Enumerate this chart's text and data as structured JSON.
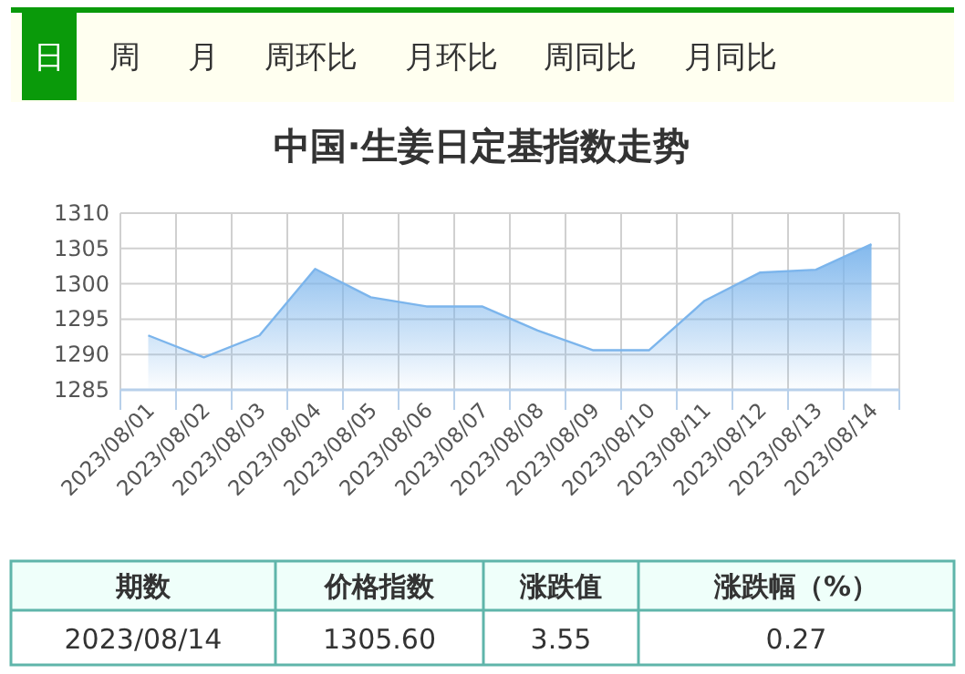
{
  "chart_data": {
    "type": "area",
    "title": "中国·生姜日定基指数走势",
    "categories": [
      "2023/08/01",
      "2023/08/02",
      "2023/08/03",
      "2023/08/04",
      "2023/08/05",
      "2023/08/06",
      "2023/08/07",
      "2023/08/08",
      "2023/08/09",
      "2023/08/10",
      "2023/08/11",
      "2023/08/12",
      "2023/08/13",
      "2023/08/14"
    ],
    "series": [
      {
        "color": "#7cb5ec",
        "values": [
          1292.7,
          1289.6,
          1292.7,
          1302.1,
          1298.1,
          1296.8,
          1296.8,
          1293.4,
          1290.6,
          1290.6,
          1297.6,
          1301.6,
          1302.0,
          1305.6
        ]
      }
    ],
    "ylim": [
      1285,
      1310
    ],
    "yticks": [
      1285,
      1290,
      1295,
      1300,
      1305,
      1310
    ],
    "grid": true,
    "annotations": [
      "日",
      "周",
      "月",
      "周环比",
      "月环比",
      "周同比",
      "月同比",
      "期数",
      "价格指数",
      "涨跌值",
      "涨跌幅（%）",
      "2023/08/14",
      "1305.60",
      "3.55",
      "0.27"
    ]
  }
}
